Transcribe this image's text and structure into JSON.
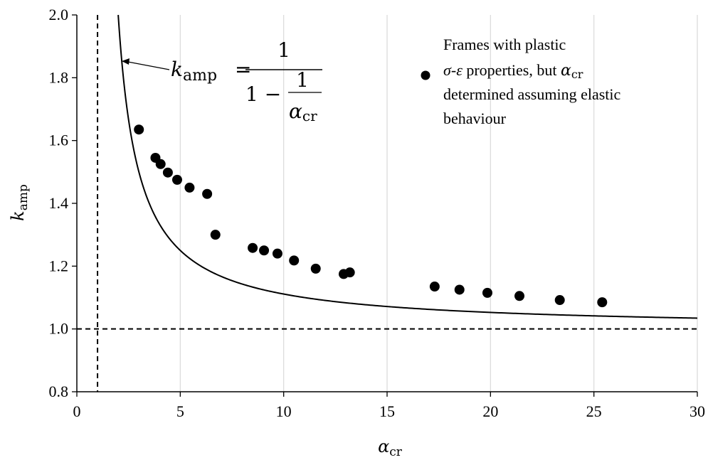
{
  "chart_data": {
    "type": "scatter",
    "xlim": [
      0,
      30
    ],
    "ylim": [
      0.8,
      2.0
    ],
    "x_ticks": [
      0,
      5,
      10,
      15,
      20,
      25,
      30
    ],
    "y_ticks": [
      0.8,
      1.0,
      1.2,
      1.4,
      1.6,
      1.8,
      2.0
    ],
    "x_tick_labels": [
      "0",
      "5",
      "10",
      "15",
      "20",
      "25",
      "30"
    ],
    "y_tick_labels": [
      "0.8",
      "1.0",
      "1.2",
      "1.4",
      "1.6",
      "1.8",
      "2.0"
    ],
    "grid": "vertical gridlines only",
    "xlabel": {
      "symbol": "α",
      "subscript": "cr"
    },
    "ylabel": {
      "symbol": "k",
      "subscript": "amp"
    },
    "reference_lines": {
      "vertical_x": 1,
      "horizontal_y": 1.0
    },
    "curve": {
      "formula": "k_amp = 1 / (1 - 1/α_cr)",
      "x_range": [
        2.0,
        30
      ],
      "annotation": {
        "lhs_symbol": "k",
        "lhs_subscript": "amp",
        "equals": "=",
        "numerator": "1",
        "denominator_prefix": "1 −",
        "inner_numerator": "1",
        "inner_symbol": "α",
        "inner_subscript": "cr"
      }
    },
    "legend": {
      "placement": "top-right",
      "line1": "Frames with plastic",
      "line2_sigma": "σ",
      "line2_dash": "-",
      "line2_eps": "ε",
      "line2_mid": " properties, but ",
      "line2_alpha": "α",
      "line2_sub": "cr",
      "line3": "determined assuming elastic",
      "line4": "behaviour"
    },
    "series": [
      {
        "points": [
          {
            "x": 3.0,
            "y": 1.635
          },
          {
            "x": 3.8,
            "y": 1.545
          },
          {
            "x": 4.05,
            "y": 1.525
          },
          {
            "x": 4.4,
            "y": 1.498
          },
          {
            "x": 4.85,
            "y": 1.475
          },
          {
            "x": 5.45,
            "y": 1.45
          },
          {
            "x": 6.3,
            "y": 1.43
          },
          {
            "x": 6.7,
            "y": 1.3
          },
          {
            "x": 8.5,
            "y": 1.258
          },
          {
            "x": 9.05,
            "y": 1.25
          },
          {
            "x": 9.7,
            "y": 1.24
          },
          {
            "x": 10.5,
            "y": 1.218
          },
          {
            "x": 11.55,
            "y": 1.192
          },
          {
            "x": 12.9,
            "y": 1.175
          },
          {
            "x": 13.2,
            "y": 1.18
          },
          {
            "x": 17.3,
            "y": 1.135
          },
          {
            "x": 18.5,
            "y": 1.125
          },
          {
            "x": 19.85,
            "y": 1.115
          },
          {
            "x": 21.4,
            "y": 1.105
          },
          {
            "x": 23.35,
            "y": 1.092
          },
          {
            "x": 25.4,
            "y": 1.085
          }
        ]
      }
    ]
  }
}
